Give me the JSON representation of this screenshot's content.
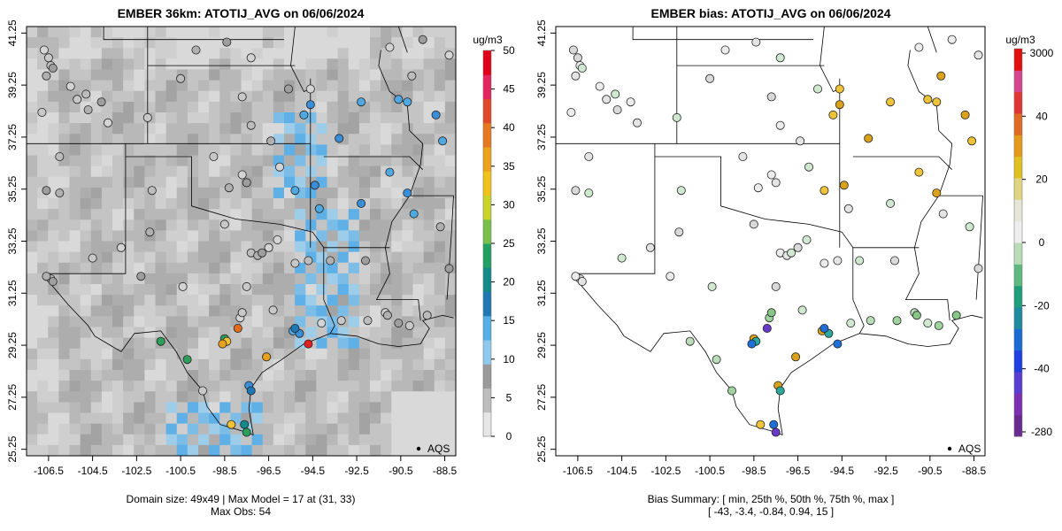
{
  "chart_data": [
    {
      "type": "heatmap",
      "title": "EMBER 36km: ATOTIJ_AVG on 06/06/2024",
      "x_ticks": [
        "-106.5",
        "-104.5",
        "-102.5",
        "-100.5",
        "-98.5",
        "-96.5",
        "-94.5",
        "-92.5",
        "-90.5",
        "-88.5"
      ],
      "y_ticks": [
        "25.25",
        "27.25",
        "29.25",
        "31.25",
        "33.25",
        "35.25",
        "37.25",
        "39.25",
        "41.25"
      ],
      "xlim": [
        -107.5,
        -88.0
      ],
      "ylim": [
        25.0,
        41.5
      ],
      "colorbar": {
        "unit": "ug/m3",
        "ticks": [
          "0",
          "5",
          "10",
          "15",
          "20",
          "25",
          "30",
          "35",
          "40",
          "45",
          "50"
        ],
        "range": [
          0,
          50
        ]
      },
      "legend": {
        "label": "AQS",
        "position": "bottom-right"
      },
      "caption": [
        "Domain size: 49x49 | Max Model = 17 at (31, 33)",
        "Max Obs: 54"
      ]
    },
    {
      "type": "scatter",
      "title": "EMBER bias: ATOTIJ_AVG on 06/06/2024",
      "x_ticks": [
        "-106.5",
        "-104.5",
        "-102.5",
        "-100.5",
        "-98.5",
        "-96.5",
        "-94.5",
        "-92.5",
        "-90.5",
        "-88.5"
      ],
      "y_ticks": [
        "25.25",
        "27.25",
        "29.25",
        "31.25",
        "33.25",
        "35.25",
        "37.25",
        "39.25",
        "41.25"
      ],
      "xlim": [
        -107.5,
        -88.0
      ],
      "ylim": [
        25.0,
        41.5
      ],
      "colorbar": {
        "unit": "ug/m3",
        "ticks": [
          "3000",
          "40",
          "20",
          "0",
          "-20",
          "-40",
          "-280"
        ]
      },
      "legend": {
        "label": "AQS",
        "position": "bottom-right"
      },
      "caption": [
        "Bias Summary: [ min, 25th %, 50th %, 75th %, max ]",
        "[ -43,   -3.4,   -0.84,   0.94,   15 ]"
      ],
      "bias_summary": {
        "min": -43,
        "p25": -3.4,
        "p50": -0.84,
        "p75": 0.94,
        "max": 15
      }
    }
  ]
}
